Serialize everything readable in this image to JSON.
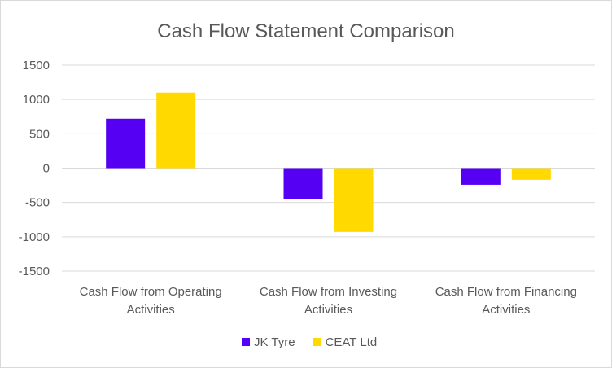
{
  "chart_data": {
    "type": "bar",
    "title": "Cash Flow Statement Comparison",
    "categories": [
      [
        "Cash Flow from Operating",
        "Activities"
      ],
      [
        "Cash Flow from Investing",
        "Activities"
      ],
      [
        "Cash Flow from Financing",
        "Activities"
      ]
    ],
    "series": [
      {
        "name": "JK Tyre",
        "color": "#5500F2",
        "values": [
          720,
          -456,
          -242
        ]
      },
      {
        "name": "CEAT Ltd",
        "color": "#FFD900",
        "values": [
          1100,
          -929,
          -170
        ]
      }
    ],
    "ylim": [
      -1500,
      1500
    ],
    "yticks": [
      1500,
      1000,
      500,
      0,
      -500,
      -1000,
      -1500
    ],
    "grid": true,
    "legend": "bottom",
    "xlabel": "",
    "ylabel": ""
  }
}
